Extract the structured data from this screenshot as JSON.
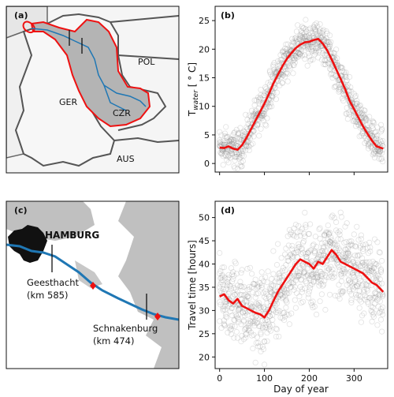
{
  "panels": {
    "a": {
      "label": "(a)",
      "country_labels": [
        "POL",
        "GER",
        "CZR",
        "AUS"
      ]
    },
    "b": {
      "label": "(b)",
      "ylabel": "T",
      "ylabel_sub": "water",
      "ylabel_unit": " [ ° C]"
    },
    "c": {
      "label": "(c)",
      "city_label": "HAMBURG",
      "station1_name": "Geesthacht",
      "station1_km": "(km 585)",
      "station2_name": "Schnakenburg",
      "station2_km": "(km 474)"
    },
    "d": {
      "label": "(d)",
      "ylabel": "Travel time [hours]",
      "xlabel": "Day of year"
    }
  },
  "chart_data": [
    {
      "panel": "b",
      "type": "scatter",
      "ylabel": "T_water [ ° C]",
      "xlim": [
        -10,
        375
      ],
      "ylim": [
        -1.5,
        27.5
      ],
      "xticks": [
        0,
        100,
        200,
        300
      ],
      "yticks": [
        0,
        5,
        10,
        15,
        20,
        25
      ],
      "ytick_labels": [
        "0",
        "5",
        "10",
        "15",
        "20",
        "25"
      ],
      "series": [
        {
          "role": "mean-line",
          "color": "#ee1111",
          "x": [
            0,
            10,
            20,
            30,
            40,
            50,
            60,
            70,
            80,
            90,
            100,
            110,
            120,
            130,
            140,
            150,
            160,
            170,
            180,
            190,
            200,
            210,
            220,
            230,
            240,
            250,
            260,
            270,
            280,
            290,
            300,
            310,
            320,
            330,
            340,
            350,
            365
          ],
          "y": [
            2.8,
            2.7,
            3.0,
            2.6,
            2.4,
            3.2,
            4.5,
            6.0,
            7.5,
            9.0,
            10.5,
            12.2,
            14.0,
            15.5,
            17.0,
            18.3,
            19.3,
            20.2,
            20.8,
            21.2,
            21.3,
            21.6,
            21.8,
            21.0,
            19.8,
            18.2,
            16.5,
            14.8,
            13.0,
            11.0,
            9.5,
            8.0,
            6.5,
            5.2,
            4.0,
            3.0,
            2.6
          ]
        }
      ],
      "scatter_color": "#7a7a7a"
    },
    {
      "panel": "d",
      "type": "scatter",
      "ylabel": "Travel time [hours]",
      "xlabel": "Day of year",
      "xlim": [
        -10,
        375
      ],
      "ylim": [
        17.5,
        53.5
      ],
      "xticks": [
        0,
        100,
        200,
        300
      ],
      "xtick_labels": [
        "0",
        "100",
        "200",
        "300"
      ],
      "yticks": [
        20,
        25,
        30,
        35,
        40,
        45,
        50
      ],
      "ytick_labels": [
        "20",
        "25",
        "30",
        "35",
        "40",
        "45",
        "50"
      ],
      "series": [
        {
          "role": "mean-line",
          "color": "#ee1111",
          "x": [
            0,
            10,
            20,
            30,
            40,
            50,
            60,
            70,
            80,
            90,
            100,
            110,
            120,
            130,
            140,
            150,
            160,
            170,
            180,
            190,
            200,
            210,
            220,
            230,
            240,
            250,
            260,
            270,
            280,
            290,
            300,
            310,
            320,
            330,
            340,
            350,
            365
          ],
          "y": [
            33.0,
            33.5,
            32.2,
            31.5,
            32.5,
            31.0,
            30.5,
            30.0,
            29.5,
            29.2,
            28.5,
            30.0,
            32.0,
            34.0,
            35.5,
            37.0,
            38.5,
            40.0,
            41.0,
            40.5,
            40.0,
            39.0,
            40.5,
            40.0,
            41.5,
            43.0,
            42.0,
            40.5,
            40.0,
            39.5,
            39.0,
            38.5,
            38.0,
            37.0,
            36.0,
            35.5,
            34.0
          ]
        }
      ],
      "scatter_color": "#7a7a7a"
    }
  ],
  "colors": {
    "map_land": "#f5f5f5",
    "catchment": "#b4b4b4",
    "border": "#555555",
    "catchment_outline": "#ee1111",
    "river": "#1f77b4",
    "marker": "#ee1111",
    "city": "#111111"
  }
}
